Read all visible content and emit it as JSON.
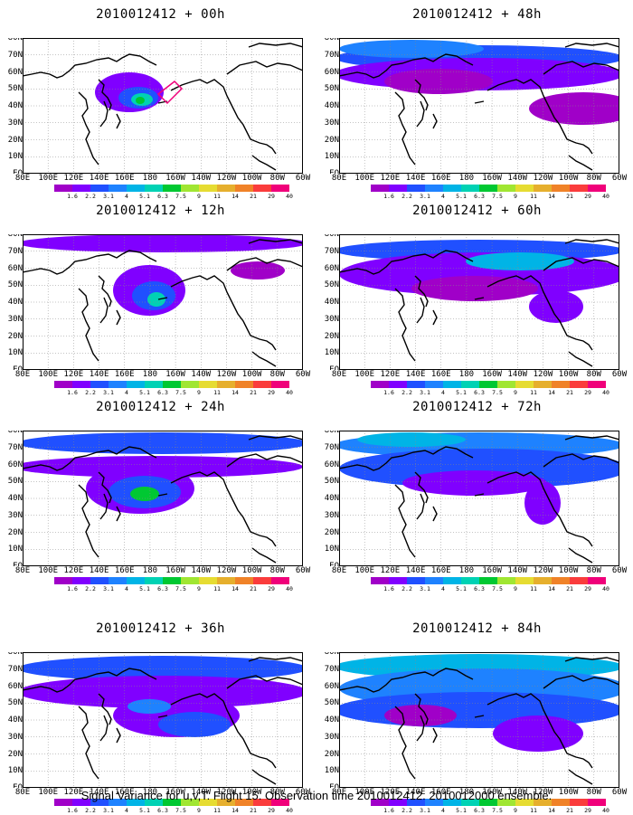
{
  "chart_data": {
    "type": "heatmap",
    "panels": [
      {
        "title": "2010012412 + 00h"
      },
      {
        "title": "2010012412 + 48h"
      },
      {
        "title": "2010012412 + 12h"
      },
      {
        "title": "2010012412 + 60h"
      },
      {
        "title": "2010012412 + 24h"
      },
      {
        "title": "2010012412 + 72h"
      },
      {
        "title": "2010012412 + 36h"
      },
      {
        "title": "2010012412 + 84h"
      }
    ],
    "lat_ticks": [
      "80N",
      "70N",
      "60N",
      "50N",
      "40N",
      "30N",
      "20N",
      "10N",
      "EQ"
    ],
    "lon_ticks": [
      "80E",
      "100E",
      "120E",
      "140E",
      "160E",
      "180",
      "160W",
      "140W",
      "120W",
      "100W",
      "80W",
      "60W"
    ],
    "colorbar": {
      "colors": [
        "#a000c8",
        "#8000ff",
        "#2050ff",
        "#1e82ff",
        "#00b4e6",
        "#00d2b4",
        "#00c832",
        "#a0e632",
        "#e6dc32",
        "#e6af2d",
        "#f08228",
        "#fa3c3c",
        "#f0007a"
      ],
      "labels": [
        "1.6",
        "2.2",
        "3.1",
        "4",
        "5.1",
        "6.3",
        "7.5",
        "9",
        "11",
        "14",
        "21",
        "29",
        "40"
      ]
    },
    "footer": "Signal Variance for u,v,T. Flight 15. Observation time 2010012412. 2010012000 ensemble."
  }
}
